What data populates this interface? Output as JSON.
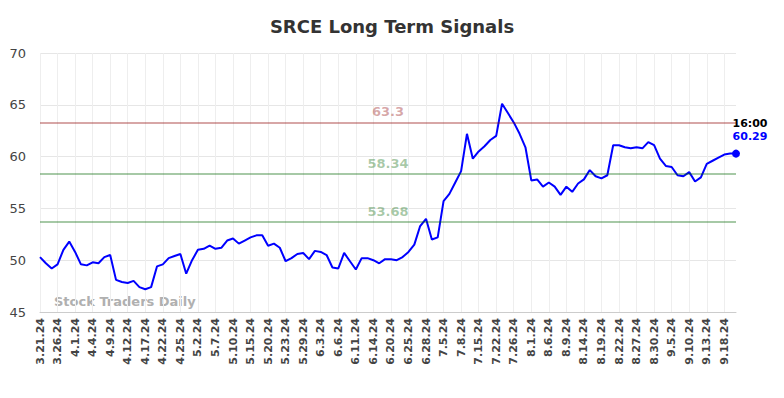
{
  "chart_data": {
    "type": "line",
    "title": "SRCE Long Term Signals",
    "watermark": "Stock Traders Daily",
    "categories": [
      "3.21.24",
      null,
      null,
      "3.26.24",
      null,
      null,
      "4.1.24",
      null,
      null,
      "4.4.24",
      null,
      null,
      "4.9.24",
      null,
      null,
      "4.12.24",
      null,
      null,
      "4.17.24",
      null,
      null,
      "4.22.24",
      null,
      null,
      "4.25.24",
      null,
      null,
      "5.2.24",
      null,
      null,
      "5.7.24",
      null,
      null,
      "5.10.24",
      null,
      null,
      "5.15.24",
      null,
      null,
      "5.20.24",
      null,
      null,
      "5.23.24",
      null,
      null,
      "5.29.24",
      null,
      null,
      "6.3.24",
      null,
      null,
      "6.6.24",
      null,
      null,
      "6.11.24",
      null,
      null,
      "6.14.24",
      null,
      null,
      "6.20.24",
      null,
      null,
      "6.25.24",
      null,
      null,
      "6.28.24",
      null,
      null,
      "7.5.24",
      null,
      null,
      "7.8.24",
      null,
      null,
      "7.15.24",
      null,
      null,
      "7.22.24",
      null,
      null,
      "7.26.24",
      null,
      null,
      "8.1.24",
      null,
      null,
      "8.6.24",
      null,
      null,
      "8.9.24",
      null,
      null,
      "8.14.24",
      null,
      null,
      "8.19.24",
      null,
      null,
      "8.22.24",
      null,
      null,
      "8.27.24",
      null,
      null,
      "8.30.24",
      null,
      null,
      "9.5.24",
      null,
      null,
      "9.10.24",
      null,
      null,
      "9.13.24",
      null,
      null,
      "9.18.24",
      null,
      null
    ],
    "values": [
      50.3,
      49.7,
      49.2,
      49.6,
      51.0,
      51.8,
      50.8,
      49.6,
      49.5,
      49.8,
      49.7,
      50.3,
      50.5,
      48.1,
      47.9,
      47.8,
      48.0,
      47.4,
      47.2,
      47.4,
      49.4,
      49.6,
      50.2,
      50.4,
      50.6,
      48.7,
      50.0,
      51.0,
      51.1,
      51.4,
      51.1,
      51.2,
      51.9,
      52.1,
      51.6,
      51.9,
      52.2,
      52.4,
      52.4,
      51.4,
      51.6,
      51.2,
      49.9,
      50.2,
      50.6,
      50.7,
      50.1,
      50.9,
      50.8,
      50.5,
      49.3,
      49.2,
      50.7,
      49.9,
      49.1,
      50.2,
      50.2,
      50.0,
      49.7,
      50.1,
      50.1,
      50.0,
      50.3,
      50.8,
      51.5,
      53.3,
      54.0,
      52.0,
      52.2,
      55.7,
      56.4,
      57.5,
      58.6,
      62.2,
      59.8,
      60.5,
      61.0,
      61.6,
      62.0,
      65.1,
      64.2,
      63.3,
      62.2,
      60.9,
      57.7,
      57.8,
      57.1,
      57.5,
      57.1,
      56.3,
      57.1,
      56.6,
      57.4,
      57.8,
      58.7,
      58.1,
      57.9,
      58.2,
      61.1,
      61.1,
      60.9,
      60.8,
      60.9,
      60.8,
      61.4,
      61.1,
      59.8,
      59.1,
      59.0,
      58.2,
      58.1,
      58.5,
      57.6,
      58.0,
      59.3,
      59.6,
      59.9,
      60.2,
      60.3,
      60.29
    ],
    "color": "#0000ff",
    "ylim": [
      45,
      70
    ],
    "yticks": [
      45,
      50,
      55,
      60,
      65,
      70
    ],
    "grid": true,
    "reference_lines": [
      {
        "value": 63.3,
        "label": "63.3",
        "color": "#8b0000"
      },
      {
        "value": 58.34,
        "label": "58.34",
        "color": "#006400"
      },
      {
        "value": 53.68,
        "label": "53.68",
        "color": "#006400"
      }
    ],
    "annotations": [
      {
        "text": "16:00"
      }
    ]
  }
}
